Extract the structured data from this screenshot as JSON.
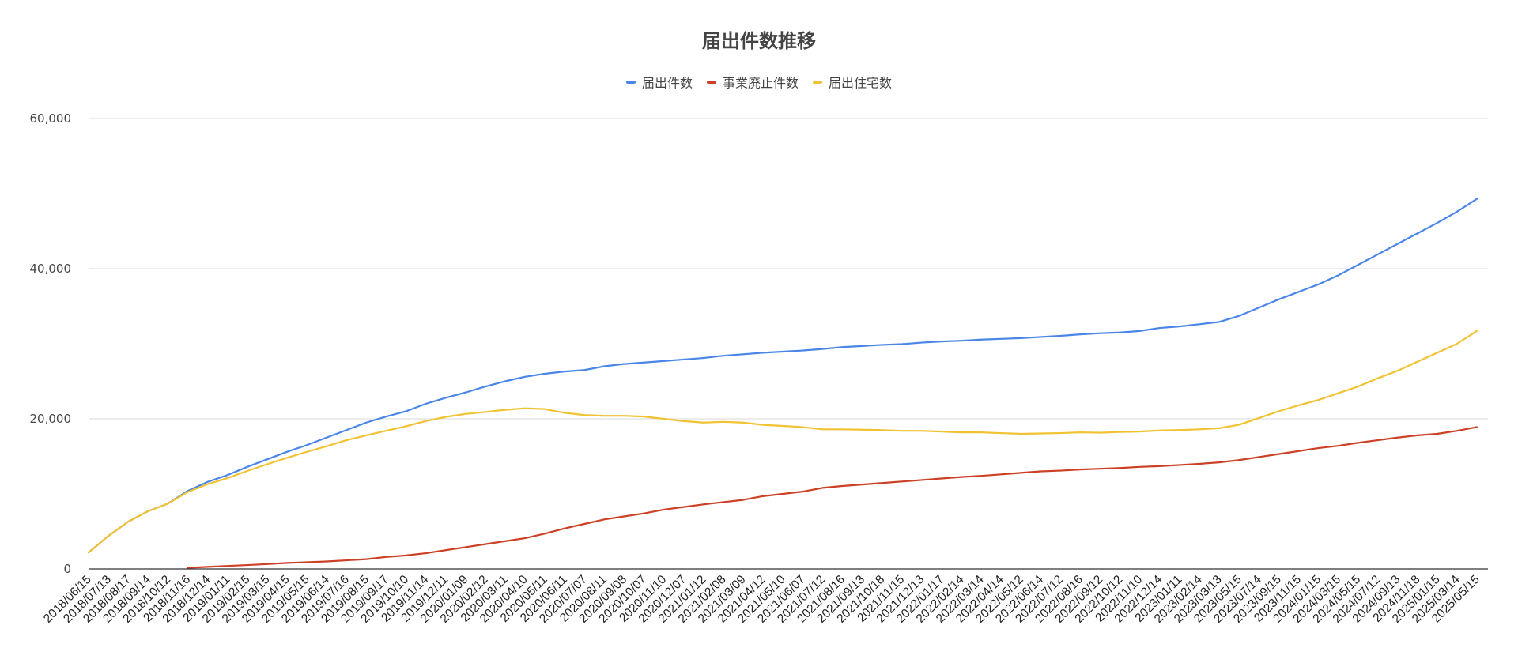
{
  "chart_data": {
    "type": "line",
    "title": "届出件数推移",
    "xlabel": "",
    "ylabel": "",
    "legend_position": "top",
    "grid": true,
    "ylim": [
      0,
      60000
    ],
    "y_ticks": [
      0,
      20000,
      40000,
      60000
    ],
    "y_tick_labels": [
      "0",
      "20,000",
      "40,000",
      "60,000"
    ],
    "x": [
      "2018/06/15",
      "2018/07/13",
      "2018/08/17",
      "2018/09/14",
      "2018/10/12",
      "2018/11/16",
      "2018/12/14",
      "2019/01/11",
      "2019/02/15",
      "2019/03/15",
      "2019/04/15",
      "2019/05/15",
      "2019/06/14",
      "2019/07/16",
      "2019/08/15",
      "2019/09/17",
      "2019/10/10",
      "2019/11/14",
      "2019/12/11",
      "2020/01/09",
      "2020/02/12",
      "2020/03/11",
      "2020/04/10",
      "2020/05/11",
      "2020/06/11",
      "2020/07/07",
      "2020/08/11",
      "2020/09/08",
      "2020/10/07",
      "2020/11/10",
      "2020/12/07",
      "2021/01/12",
      "2021/02/08",
      "2021/03/09",
      "2021/04/12",
      "2021/05/10",
      "2021/06/07",
      "2021/07/12",
      "2021/08/16",
      "2021/09/13",
      "2021/10/18",
      "2021/11/15",
      "2021/12/13",
      "2022/01/17",
      "2022/02/14",
      "2022/03/14",
      "2022/04/14",
      "2022/05/12",
      "2022/06/14",
      "2022/07/12",
      "2022/08/16",
      "2022/09/12",
      "2022/10/12",
      "2022/11/10",
      "2022/12/14",
      "2023/01/11",
      "2023/02/14",
      "2023/03/13",
      "2023/05/15",
      "2023/07/14",
      "2023/09/15",
      "2023/11/15",
      "2024/01/15",
      "2024/03/15",
      "2024/05/15",
      "2024/07/12",
      "2024/09/13",
      "2024/11/18",
      "2025/01/15",
      "2025/03/14",
      "2025/05/15"
    ],
    "series": [
      {
        "name": "届出件数",
        "color": "#4a86e8",
        "values": [
          2200,
          4400,
          6300,
          7700,
          8700,
          10400,
          11600,
          12500,
          13600,
          14600,
          15600,
          16500,
          17500,
          18500,
          19500,
          20300,
          21000,
          22000,
          22800,
          23500,
          24300,
          25000,
          25600,
          26000,
          26300,
          26500,
          27000,
          27300,
          27500,
          27700,
          27900,
          28100,
          28400,
          28600,
          28800,
          28950,
          29100,
          29300,
          29550,
          29700,
          29850,
          29950,
          30150,
          30300,
          30400,
          30550,
          30650,
          30750,
          30900,
          31050,
          31250,
          31400,
          31500,
          31700,
          32100,
          32300,
          32600,
          32900,
          33700,
          34800,
          35900,
          36900,
          37900,
          39100,
          40500,
          41900,
          43300,
          44700,
          46100,
          47600,
          49300
        ]
      },
      {
        "name": "事業廃止件数",
        "color": "#cc4125",
        "values": [
          null,
          null,
          null,
          null,
          null,
          150,
          280,
          400,
          520,
          650,
          800,
          900,
          1000,
          1150,
          1300,
          1600,
          1800,
          2100,
          2500,
          2900,
          3300,
          3700,
          4100,
          4700,
          5400,
          6000,
          6600,
          7000,
          7400,
          7900,
          8250,
          8600,
          8900,
          9200,
          9700,
          10000,
          10300,
          10800,
          11050,
          11250,
          11450,
          11650,
          11850,
          12050,
          12250,
          12400,
          12600,
          12800,
          13000,
          13100,
          13250,
          13350,
          13450,
          13600,
          13700,
          13850,
          14000,
          14200,
          14500,
          14900,
          15300,
          15700,
          16100,
          16400,
          16800,
          17150,
          17500,
          17800,
          18000,
          18400,
          18900
        ]
      },
      {
        "name": "届出住宅数",
        "color": "#f1c232",
        "values": [
          2200,
          4400,
          6300,
          7700,
          8700,
          10250,
          11300,
          12100,
          13050,
          13950,
          14800,
          15600,
          16350,
          17150,
          17800,
          18400,
          19000,
          19700,
          20250,
          20650,
          20900,
          21200,
          21400,
          21300,
          20800,
          20500,
          20400,
          20400,
          20300,
          20000,
          19700,
          19500,
          19600,
          19500,
          19200,
          19050,
          18900,
          18600,
          18600,
          18550,
          18500,
          18400,
          18400,
          18300,
          18200,
          18200,
          18100,
          18000,
          18050,
          18100,
          18200,
          18150,
          18250,
          18300,
          18450,
          18500,
          18600,
          18750,
          19200,
          20100,
          21000,
          21800,
          22500,
          23400,
          24300,
          25400,
          26400,
          27600,
          28800,
          30000,
          31700
        ]
      }
    ]
  }
}
